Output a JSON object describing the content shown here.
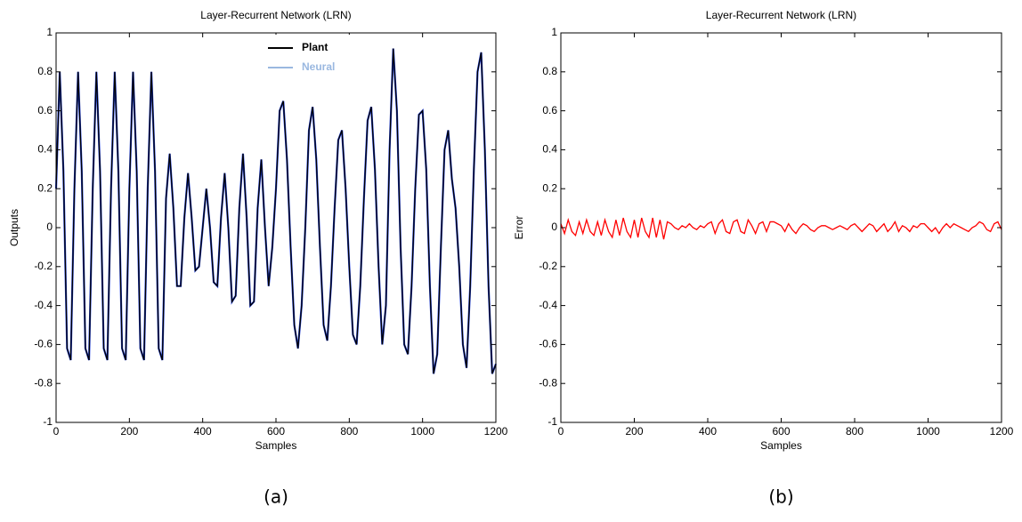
{
  "chart_data": [
    {
      "type": "line",
      "title": "Layer-Recurrent Network (LRN)",
      "x_label": "Samples",
      "y_label": "Outputs",
      "x": [
        0,
        10,
        20,
        30,
        40,
        50,
        60,
        70,
        80,
        90,
        100,
        110,
        120,
        130,
        140,
        150,
        160,
        170,
        180,
        190,
        200,
        210,
        220,
        230,
        240,
        250,
        260,
        270,
        280,
        290,
        300,
        310,
        320,
        330,
        340,
        350,
        360,
        370,
        380,
        390,
        400,
        410,
        420,
        430,
        440,
        450,
        460,
        470,
        480,
        490,
        500,
        510,
        520,
        530,
        540,
        550,
        560,
        570,
        580,
        590,
        600,
        610,
        620,
        630,
        640,
        650,
        660,
        670,
        680,
        690,
        700,
        710,
        720,
        730,
        740,
        750,
        760,
        770,
        780,
        790,
        800,
        810,
        820,
        830,
        840,
        850,
        860,
        870,
        880,
        890,
        900,
        910,
        920,
        930,
        940,
        950,
        960,
        970,
        980,
        990,
        1000,
        1010,
        1020,
        1030,
        1040,
        1050,
        1060,
        1070,
        1080,
        1090,
        1100,
        1110,
        1120,
        1130,
        1140,
        1150,
        1160,
        1170,
        1180,
        1190,
        1200
      ],
      "series": [
        {
          "name": "Neural",
          "color": "#1f3fe0",
          "values": [
            0.2,
            0.8,
            0.29,
            -0.62,
            -0.68,
            0.2,
            0.8,
            0.29,
            -0.62,
            -0.68,
            0.2,
            0.8,
            0.29,
            -0.62,
            -0.68,
            0.2,
            0.8,
            0.29,
            -0.62,
            -0.68,
            0.2,
            0.8,
            0.29,
            -0.62,
            -0.68,
            0.2,
            0.8,
            0.29,
            -0.62,
            -0.68,
            0.15,
            0.38,
            0.1,
            -0.3,
            -0.3,
            0.05,
            0.28,
            0.05,
            -0.22,
            -0.2,
            0.0,
            0.2,
            0.0,
            -0.28,
            -0.3,
            0.05,
            0.28,
            0.0,
            -0.38,
            -0.35,
            0.1,
            0.38,
            0.05,
            -0.4,
            -0.38,
            0.1,
            0.35,
            0.0,
            -0.3,
            -0.1,
            0.2,
            0.6,
            0.65,
            0.35,
            -0.1,
            -0.5,
            -0.62,
            -0.4,
            0.0,
            0.5,
            0.62,
            0.35,
            -0.1,
            -0.5,
            -0.58,
            -0.3,
            0.1,
            0.45,
            0.5,
            0.2,
            -0.2,
            -0.55,
            -0.6,
            -0.3,
            0.15,
            0.55,
            0.62,
            0.3,
            -0.2,
            -0.6,
            -0.4,
            0.4,
            0.92,
            0.6,
            -0.1,
            -0.6,
            -0.65,
            -0.3,
            0.2,
            0.58,
            0.6,
            0.3,
            -0.3,
            -0.75,
            -0.65,
            -0.1,
            0.4,
            0.5,
            0.25,
            0.1,
            -0.2,
            -0.6,
            -0.72,
            -0.3,
            0.3,
            0.8,
            0.9,
            0.4,
            -0.3,
            -0.75,
            -0.7
          ]
        },
        {
          "name": "Plant",
          "color": "#000000",
          "values": [
            0.2,
            0.8,
            0.29,
            -0.62,
            -0.68,
            0.2,
            0.8,
            0.29,
            -0.62,
            -0.68,
            0.2,
            0.8,
            0.29,
            -0.62,
            -0.68,
            0.2,
            0.8,
            0.29,
            -0.62,
            -0.68,
            0.2,
            0.8,
            0.29,
            -0.62,
            -0.68,
            0.2,
            0.8,
            0.29,
            -0.62,
            -0.68,
            0.15,
            0.38,
            0.1,
            -0.3,
            -0.3,
            0.05,
            0.28,
            0.05,
            -0.22,
            -0.2,
            0.0,
            0.2,
            0.0,
            -0.28,
            -0.3,
            0.05,
            0.28,
            0.0,
            -0.38,
            -0.35,
            0.1,
            0.38,
            0.05,
            -0.4,
            -0.38,
            0.1,
            0.35,
            0.0,
            -0.3,
            -0.1,
            0.2,
            0.6,
            0.65,
            0.35,
            -0.1,
            -0.5,
            -0.62,
            -0.4,
            0.0,
            0.5,
            0.62,
            0.35,
            -0.1,
            -0.5,
            -0.58,
            -0.3,
            0.1,
            0.45,
            0.5,
            0.2,
            -0.2,
            -0.55,
            -0.6,
            -0.3,
            0.15,
            0.55,
            0.62,
            0.3,
            -0.2,
            -0.6,
            -0.4,
            0.4,
            0.92,
            0.6,
            -0.1,
            -0.6,
            -0.65,
            -0.3,
            0.2,
            0.58,
            0.6,
            0.3,
            -0.3,
            -0.75,
            -0.65,
            -0.1,
            0.4,
            0.5,
            0.25,
            0.1,
            -0.2,
            -0.6,
            -0.72,
            -0.3,
            0.3,
            0.8,
            0.9,
            0.4,
            -0.3,
            -0.75,
            -0.7
          ]
        }
      ],
      "legend": "top",
      "xlim": [
        0,
        1200
      ],
      "xticks": [
        0,
        200,
        400,
        600,
        800,
        1000,
        1200
      ],
      "ylim": [
        -1,
        1
      ],
      "yticks": [
        -1,
        -0.8,
        -0.6,
        -0.4,
        -0.2,
        0,
        0.2,
        0.4,
        0.6,
        0.8,
        1
      ]
    },
    {
      "type": "line",
      "title": "Layer-Recurrent Network (LRN)",
      "x_label": "Samples",
      "y_label": "Error",
      "x": [
        0,
        10,
        20,
        30,
        40,
        50,
        60,
        70,
        80,
        90,
        100,
        110,
        120,
        130,
        140,
        150,
        160,
        170,
        180,
        190,
        200,
        210,
        220,
        230,
        240,
        250,
        260,
        270,
        280,
        290,
        300,
        310,
        320,
        330,
        340,
        350,
        360,
        370,
        380,
        390,
        400,
        410,
        420,
        430,
        440,
        450,
        460,
        470,
        480,
        490,
        500,
        510,
        520,
        530,
        540,
        550,
        560,
        570,
        580,
        590,
        600,
        610,
        620,
        630,
        640,
        650,
        660,
        670,
        680,
        690,
        700,
        710,
        720,
        730,
        740,
        750,
        760,
        770,
        780,
        790,
        800,
        810,
        820,
        830,
        840,
        850,
        860,
        870,
        880,
        890,
        900,
        910,
        920,
        930,
        940,
        950,
        960,
        970,
        980,
        990,
        1000,
        1010,
        1020,
        1030,
        1040,
        1050,
        1060,
        1070,
        1080,
        1090,
        1100,
        1110,
        1120,
        1130,
        1140,
        1150,
        1160,
        1170,
        1180,
        1190,
        1200
      ],
      "series": [
        {
          "name": "Error",
          "color": "#ff0000",
          "values": [
            0.02,
            -0.03,
            0.04,
            -0.02,
            -0.04,
            0.03,
            -0.03,
            0.04,
            -0.02,
            -0.04,
            0.03,
            -0.04,
            0.04,
            -0.02,
            -0.05,
            0.04,
            -0.04,
            0.05,
            -0.02,
            -0.05,
            0.04,
            -0.05,
            0.05,
            -0.02,
            -0.05,
            0.05,
            -0.05,
            0.04,
            -0.06,
            0.03,
            0.02,
            0.0,
            -0.01,
            0.01,
            0.0,
            0.02,
            0.0,
            -0.01,
            0.01,
            0.0,
            0.02,
            0.03,
            -0.03,
            0.02,
            0.04,
            -0.02,
            -0.03,
            0.03,
            0.04,
            -0.02,
            -0.03,
            0.04,
            0.01,
            -0.03,
            0.02,
            0.03,
            -0.02,
            0.03,
            0.03,
            0.02,
            0.01,
            -0.02,
            0.02,
            -0.01,
            -0.03,
            0.0,
            0.02,
            0.01,
            -0.01,
            -0.02,
            0.0,
            0.01,
            0.01,
            0.0,
            -0.01,
            0.0,
            0.01,
            0.0,
            -0.01,
            0.01,
            0.02,
            0.0,
            -0.02,
            0.0,
            0.02,
            0.01,
            -0.02,
            0.0,
            0.02,
            -0.02,
            0.0,
            0.03,
            -0.02,
            0.01,
            0.0,
            -0.02,
            0.01,
            0.0,
            0.02,
            0.02,
            0.0,
            -0.02,
            0.0,
            -0.03,
            0.0,
            0.02,
            0.0,
            0.02,
            0.01,
            0.0,
            -0.01,
            -0.02,
            0.0,
            0.01,
            0.03,
            0.02,
            -0.01,
            -0.02,
            0.02,
            0.03,
            -0.01
          ]
        }
      ],
      "xlim": [
        0,
        1200
      ],
      "xticks": [
        0,
        200,
        400,
        600,
        800,
        1000,
        1200
      ],
      "ylim": [
        -1,
        1
      ],
      "yticks": [
        -1,
        -0.8,
        -0.6,
        -0.4,
        -0.2,
        0,
        0.2,
        0.4,
        0.6,
        0.8,
        1
      ]
    }
  ],
  "panel_labels": [
    "(a)",
    "(b)"
  ]
}
